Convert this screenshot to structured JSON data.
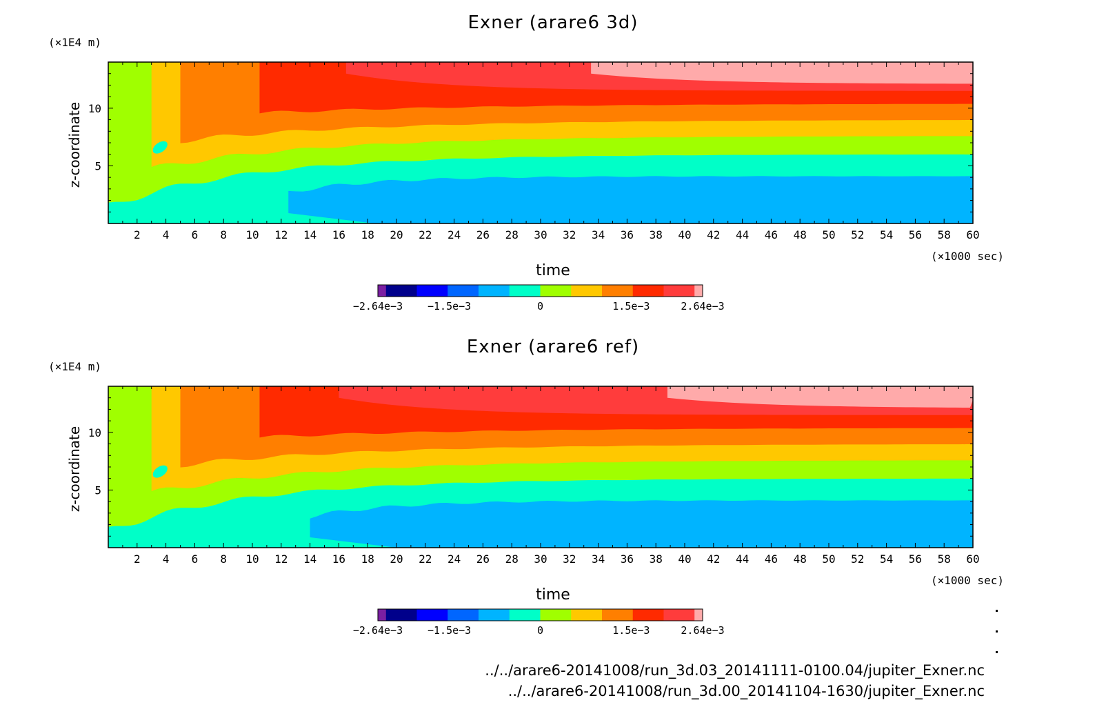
{
  "chart_data": [
    {
      "type": "heatmap",
      "title": "Exner (arare6 3d)",
      "xlabel": "time",
      "x_unit": "(×1000 sec)",
      "ylabel": "z-coordinate",
      "y_unit": "(×1E4 m)",
      "xlim": [
        0,
        60
      ],
      "ylim": [
        0,
        14
      ],
      "xticks": [
        "2",
        "4",
        "6",
        "8",
        "10",
        "12",
        "14",
        "16",
        "18",
        "20",
        "22",
        "24",
        "26",
        "28",
        "30",
        "32",
        "34",
        "36",
        "38",
        "40",
        "42",
        "44",
        "46",
        "48",
        "50",
        "52",
        "54",
        "56",
        "58",
        "60"
      ],
      "yticks": [
        "5",
        "10"
      ],
      "colorbar": {
        "range": [
          -0.00264,
          0.00264
        ],
        "tick_labels": [
          "−2.64e−3",
          "−1.5e−3",
          "0",
          "1.5e−3",
          "2.64e−3"
        ],
        "colors": [
          "#7b1fa2",
          "#00008b",
          "#0000ff",
          "#0066ff",
          "#00b4ff",
          "#00ffc8",
          "#a0ff00",
          "#ffc800",
          "#ff7f00",
          "#ff2a00",
          "#ff3c3c",
          "#ffaaaa"
        ]
      },
      "bands_steady_state_z": [
        {
          "color": "#00b4ff",
          "z_max": 4.1
        },
        {
          "color": "#00ffc8",
          "z_max": 6.0
        },
        {
          "color": "#a0ff00",
          "z_max": 7.6
        },
        {
          "color": "#ffc800",
          "z_max": 9.0
        },
        {
          "color": "#ff7f00",
          "z_max": 10.4
        },
        {
          "color": "#ff2a00",
          "z_max": 11.5
        },
        {
          "color": "#ff3c3c",
          "z_max": 12.1
        },
        {
          "color": "#ffaaaa",
          "z_max": 14.0
        }
      ],
      "transition_times": {
        "blue_starts": 12.5,
        "pink_starts": 33.5
      }
    },
    {
      "type": "heatmap",
      "title": "Exner (arare6 ref)",
      "xlabel": "time",
      "x_unit": "(×1000 sec)",
      "ylabel": "z-coordinate",
      "y_unit": "(×1E4 m)",
      "xlim": [
        0,
        60
      ],
      "ylim": [
        0,
        14
      ],
      "xticks": [
        "2",
        "4",
        "6",
        "8",
        "10",
        "12",
        "14",
        "16",
        "18",
        "20",
        "22",
        "24",
        "26",
        "28",
        "30",
        "32",
        "34",
        "36",
        "38",
        "40",
        "42",
        "44",
        "46",
        "48",
        "50",
        "52",
        "54",
        "56",
        "58",
        "60"
      ],
      "yticks": [
        "5",
        "10"
      ],
      "colorbar": {
        "range": [
          -0.00264,
          0.00264
        ],
        "tick_labels": [
          "−2.64e−3",
          "−1.5e−3",
          "0",
          "1.5e−3",
          "2.64e−3"
        ],
        "colors": [
          "#7b1fa2",
          "#00008b",
          "#0000ff",
          "#0066ff",
          "#00b4ff",
          "#00ffc8",
          "#a0ff00",
          "#ffc800",
          "#ff7f00",
          "#ff2a00",
          "#ff3c3c",
          "#ffaaaa"
        ]
      },
      "bands_steady_state_z": [
        {
          "color": "#00b4ff",
          "z_max": 4.1
        },
        {
          "color": "#00ffc8",
          "z_max": 6.0
        },
        {
          "color": "#a0ff00",
          "z_max": 7.6
        },
        {
          "color": "#ffc800",
          "z_max": 9.0
        },
        {
          "color": "#ff7f00",
          "z_max": 10.4
        },
        {
          "color": "#ff2a00",
          "z_max": 11.5
        },
        {
          "color": "#ff3c3c",
          "z_max": 12.1
        },
        {
          "color": "#ffaaaa",
          "z_max": 14.0
        }
      ],
      "transition_times": {
        "blue_starts": 14.0,
        "pink_starts": 38.8
      }
    }
  ],
  "footer": {
    "line1": "../../arare6-20141008/run_3d.03_20141111-0100.04/jupiter_Exner.nc",
    "line2": "../../arare6-20141008/run_3d.00_20141104-1630/jupiter_Exner.nc"
  }
}
